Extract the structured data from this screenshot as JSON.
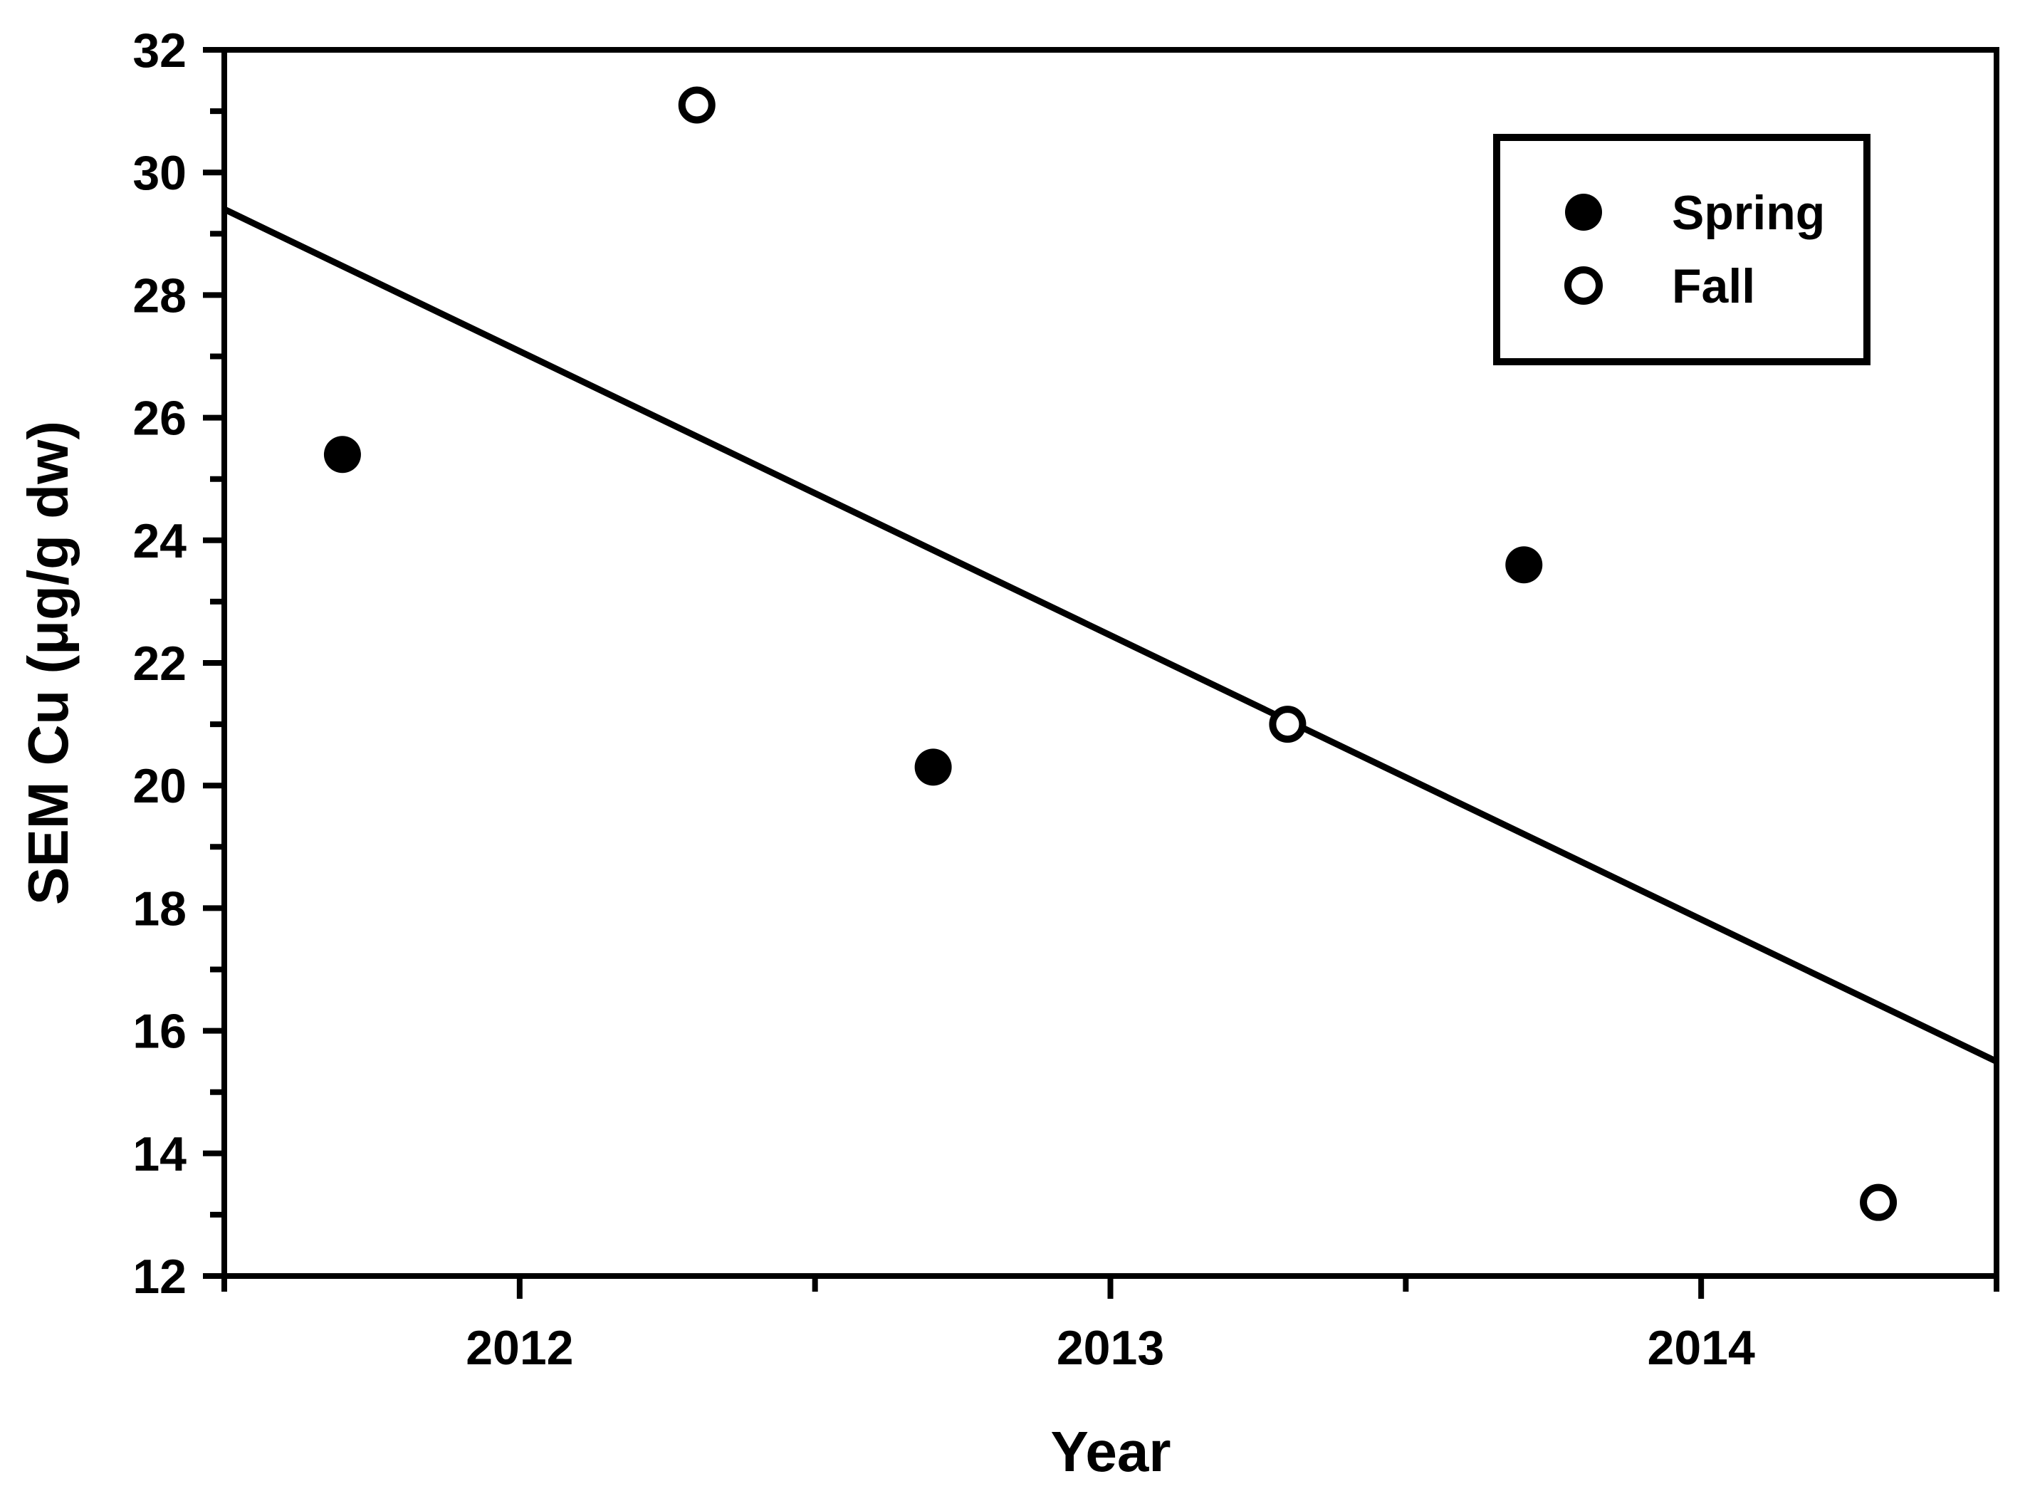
{
  "figure": {
    "background_color": "#ffffff",
    "foreground_color": "#000000"
  },
  "chart_data": {
    "type": "scatter",
    "title": "",
    "xlabel": "Year",
    "ylabel": "SEM Cu (μg/g dw)",
    "xlim": [
      2011.5,
      2014.5
    ],
    "ylim": [
      12,
      32
    ],
    "grid": false,
    "x_major_ticks": [
      2012,
      2013,
      2014
    ],
    "x_minor_ticks": [
      2011.5,
      2012.5,
      2013.5,
      2014.5
    ],
    "y_major_ticks": [
      12,
      14,
      16,
      18,
      20,
      22,
      24,
      26,
      28,
      30,
      32
    ],
    "y_minor_ticks": [
      13,
      15,
      17,
      19,
      21,
      23,
      25,
      27,
      29,
      31
    ],
    "legend": {
      "position": "top-right",
      "entries": [
        {
          "label": "Spring",
          "marker": "filled-circle"
        },
        {
          "label": "Fall",
          "marker": "open-circle"
        }
      ]
    },
    "series": [
      {
        "name": "Spring",
        "marker": "filled-circle",
        "color": "#000000",
        "points": [
          [
            2011.7,
            25.4
          ],
          [
            2012.7,
            20.3
          ],
          [
            2013.7,
            23.6
          ]
        ]
      },
      {
        "name": "Fall",
        "marker": "open-circle",
        "color": "#000000",
        "points": [
          [
            2012.3,
            31.1
          ],
          [
            2013.3,
            21.0
          ],
          [
            2014.3,
            13.2
          ]
        ]
      }
    ],
    "regression_line": {
      "x1": 2011.5,
      "y1": 29.4,
      "x2": 2014.5,
      "y2": 15.5
    }
  }
}
